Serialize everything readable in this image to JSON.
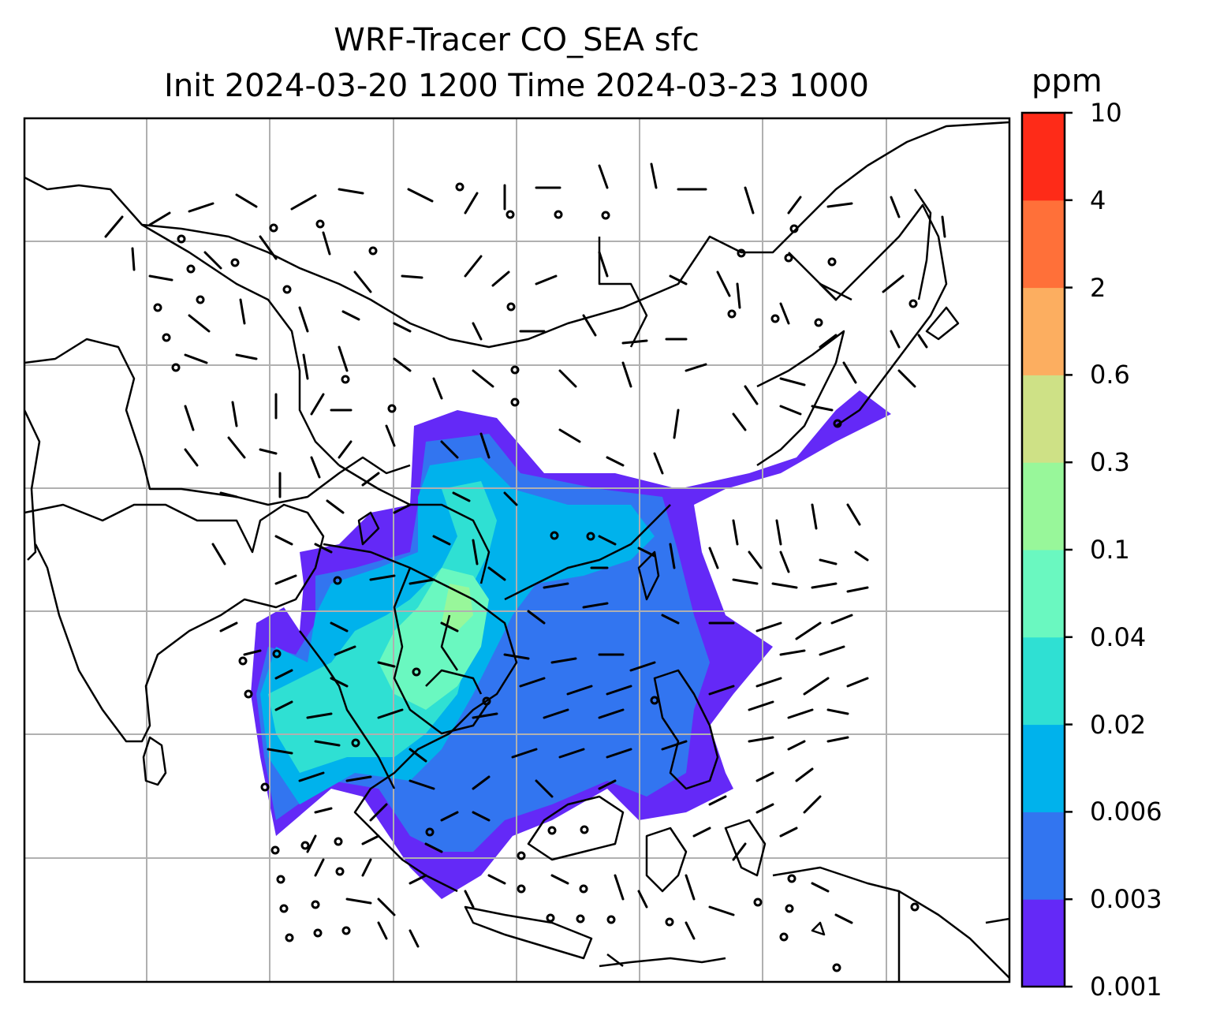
{
  "title": {
    "line1": "WRF-Tracer CO_SEA sfc",
    "line2": "Init 2024-03-20 1200 Time 2024-03-23 1000"
  },
  "colorbar": {
    "unit": "ppm",
    "levels": [
      "0.001",
      "0.003",
      "0.006",
      "0.02",
      "0.04",
      "0.1",
      "0.3",
      "0.6",
      "2",
      "4",
      "10"
    ],
    "colors": [
      "#6429f7",
      "#3275f0",
      "#00b2ec",
      "#2fe0d3",
      "#6af8c0",
      "#98f79a",
      "#cee186",
      "#fcae60",
      "#ff7039",
      "#fe2b18"
    ]
  },
  "map": {
    "grid": "on",
    "overlays": [
      "coastlines",
      "country-borders",
      "wind-barbs"
    ]
  }
}
